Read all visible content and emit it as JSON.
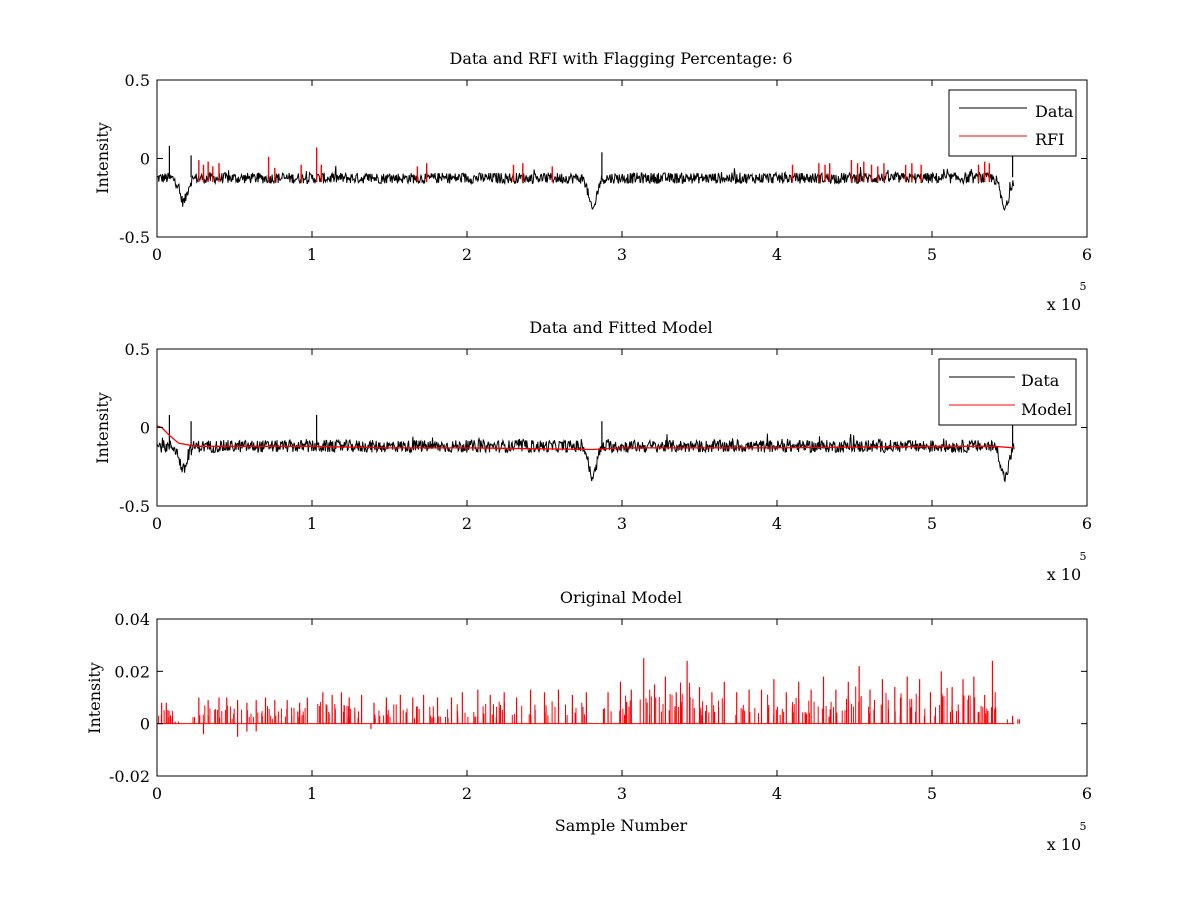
{
  "figure": {
    "subplots": [
      {
        "id": "rfi",
        "title": "Data and RFI with Flagging Percentage: 6",
        "xlabel": "",
        "ylabel": "Intensity",
        "x_multiplier_label": "x 10",
        "x_multiplier_exp": "5"
      },
      {
        "id": "model",
        "title": "Data and Fitted Model",
        "xlabel": "",
        "ylabel": "Intensity",
        "x_multiplier_label": "x 10",
        "x_multiplier_exp": "5"
      },
      {
        "id": "original",
        "title": "Original Model",
        "xlabel": "Sample Number",
        "ylabel": "Intensity",
        "x_multiplier_label": "x 10",
        "x_multiplier_exp": "5"
      }
    ]
  },
  "chart_data": [
    {
      "type": "line",
      "title": "Data and RFI with Flagging Percentage: 6",
      "xlabel": "",
      "ylabel": "Intensity",
      "xlim": [
        0,
        600000
      ],
      "ylim": [
        -0.5,
        0.5
      ],
      "x_ticks": [
        0,
        100000,
        200000,
        300000,
        400000,
        500000,
        600000
      ],
      "x_tick_labels": [
        "0",
        "1",
        "2",
        "3",
        "4",
        "5",
        "6"
      ],
      "y_ticks": [
        -0.5,
        0,
        0.5
      ],
      "y_tick_labels": [
        "-0.5",
        "0",
        "0.5"
      ],
      "grid": false,
      "legend_position": "top-right",
      "series": [
        {
          "name": "Data",
          "color": "#000000",
          "baseline": -0.12,
          "noise_band": [
            -0.16,
            -0.09
          ],
          "x_end": 553000,
          "dips": [
            {
              "x": 17000,
              "min": -0.27
            },
            {
              "x": 281000,
              "min": -0.32
            },
            {
              "x": 547000,
              "min": -0.32
            }
          ],
          "peaks": [
            {
              "x": 8000,
              "max": 0.08
            },
            {
              "x": 22000,
              "max": 0.02
            },
            {
              "x": 287000,
              "max": 0.04
            },
            {
              "x": 552000,
              "max": 0.02
            }
          ]
        },
        {
          "name": "RFI",
          "color": "#ff0000",
          "spikes": [
            {
              "x": 27000,
              "y": -0.01
            },
            {
              "x": 30000,
              "y": -0.04
            },
            {
              "x": 33000,
              "y": -0.02
            },
            {
              "x": 36000,
              "y": -0.05
            },
            {
              "x": 40000,
              "y": -0.03
            },
            {
              "x": 72000,
              "y": 0.01
            },
            {
              "x": 76000,
              "y": -0.06
            },
            {
              "x": 93000,
              "y": -0.04
            },
            {
              "x": 103000,
              "y": 0.07
            },
            {
              "x": 106000,
              "y": -0.04
            },
            {
              "x": 168000,
              "y": -0.05
            },
            {
              "x": 174000,
              "y": -0.03
            },
            {
              "x": 230000,
              "y": -0.04
            },
            {
              "x": 236000,
              "y": -0.03
            },
            {
              "x": 255000,
              "y": -0.05
            },
            {
              "x": 410000,
              "y": -0.04
            },
            {
              "x": 427000,
              "y": -0.03
            },
            {
              "x": 431000,
              "y": -0.04
            },
            {
              "x": 434000,
              "y": -0.03
            },
            {
              "x": 448000,
              "y": -0.01
            },
            {
              "x": 452000,
              "y": -0.03
            },
            {
              "x": 456000,
              "y": -0.02
            },
            {
              "x": 461000,
              "y": -0.04
            },
            {
              "x": 465000,
              "y": -0.05
            },
            {
              "x": 469000,
              "y": -0.03
            },
            {
              "x": 483000,
              "y": -0.04
            },
            {
              "x": 487000,
              "y": -0.03
            },
            {
              "x": 493000,
              "y": -0.04
            },
            {
              "x": 530000,
              "y": -0.04
            },
            {
              "x": 534000,
              "y": -0.02
            },
            {
              "x": 537000,
              "y": -0.03
            }
          ]
        }
      ]
    },
    {
      "type": "line",
      "title": "Data and Fitted Model",
      "xlabel": "",
      "ylabel": "Intensity",
      "xlim": [
        0,
        600000
      ],
      "ylim": [
        -0.5,
        0.5
      ],
      "x_ticks": [
        0,
        100000,
        200000,
        300000,
        400000,
        500000,
        600000
      ],
      "x_tick_labels": [
        "0",
        "1",
        "2",
        "3",
        "4",
        "5",
        "6"
      ],
      "y_ticks": [
        -0.5,
        0,
        0.5
      ],
      "y_tick_labels": [
        "-0.5",
        "0",
        "0.5"
      ],
      "grid": false,
      "legend_position": "top-right",
      "series": [
        {
          "name": "Data",
          "color": "#000000",
          "baseline": -0.12,
          "noise_band": [
            -0.16,
            -0.08
          ],
          "x_end": 553000,
          "dips": [
            {
              "x": 17000,
              "min": -0.27
            },
            {
              "x": 281000,
              "min": -0.32
            },
            {
              "x": 547000,
              "min": -0.32
            }
          ],
          "peaks": [
            {
              "x": 8000,
              "max": 0.08
            },
            {
              "x": 22000,
              "max": 0.04
            },
            {
              "x": 103000,
              "max": 0.08
            },
            {
              "x": 287000,
              "max": 0.04
            },
            {
              "x": 552000,
              "max": 0.02
            }
          ]
        },
        {
          "name": "Model",
          "color": "#ff0000",
          "points": [
            [
              0,
              0.01
            ],
            [
              3000,
              0.0
            ],
            [
              8000,
              -0.05
            ],
            [
              14000,
              -0.1
            ],
            [
              25000,
              -0.12
            ],
            [
              100000,
              -0.12
            ],
            [
              150000,
              -0.13
            ],
            [
              200000,
              -0.13
            ],
            [
              281000,
              -0.14
            ],
            [
              300000,
              -0.13
            ],
            [
              400000,
              -0.13
            ],
            [
              500000,
              -0.12
            ],
            [
              540000,
              -0.12
            ],
            [
              553000,
              -0.13
            ]
          ]
        }
      ]
    },
    {
      "type": "line",
      "title": "Original Model",
      "xlabel": "Sample Number",
      "ylabel": "Intensity",
      "xlim": [
        0,
        600000
      ],
      "ylim": [
        -0.02,
        0.04
      ],
      "x_ticks": [
        0,
        100000,
        200000,
        300000,
        400000,
        500000,
        600000
      ],
      "x_tick_labels": [
        "0",
        "1",
        "2",
        "3",
        "4",
        "5",
        "6"
      ],
      "y_ticks": [
        -0.02,
        0,
        0.02,
        0.04
      ],
      "y_tick_labels": [
        "-0.02",
        "0",
        "0.02",
        "0.04"
      ],
      "grid": false,
      "series": [
        {
          "color": "#ff0000",
          "baseline": 0.0,
          "x_start": 0,
          "x_end": 553000,
          "spikes": [
            {
              "x": 3000,
              "y": 0.008
            },
            {
              "x": 6000,
              "y": 0.008
            },
            {
              "x": 10000,
              "y": 0.003
            },
            {
              "x": 27000,
              "y": 0.01
            },
            {
              "x": 33000,
              "y": 0.009
            },
            {
              "x": 40000,
              "y": 0.01
            },
            {
              "x": 45000,
              "y": 0.01
            },
            {
              "x": 52000,
              "y": 0.009
            },
            {
              "x": 58000,
              "y": 0.008
            },
            {
              "x": 64000,
              "y": 0.009
            },
            {
              "x": 70000,
              "y": 0.01
            },
            {
              "x": 76000,
              "y": 0.009
            },
            {
              "x": 84000,
              "y": 0.009
            },
            {
              "x": 92000,
              "y": 0.008
            },
            {
              "x": 97000,
              "y": 0.01
            },
            {
              "x": 107000,
              "y": 0.012
            },
            {
              "x": 113000,
              "y": 0.011
            },
            {
              "x": 119000,
              "y": 0.012
            },
            {
              "x": 124000,
              "y": 0.01
            },
            {
              "x": 132000,
              "y": 0.011
            },
            {
              "x": 140000,
              "y": 0.008
            },
            {
              "x": 148000,
              "y": 0.01
            },
            {
              "x": 157000,
              "y": 0.011
            },
            {
              "x": 165000,
              "y": 0.01
            },
            {
              "x": 172000,
              "y": 0.011
            },
            {
              "x": 181000,
              "y": 0.01
            },
            {
              "x": 190000,
              "y": 0.01
            },
            {
              "x": 197000,
              "y": 0.012
            },
            {
              "x": 207000,
              "y": 0.013
            },
            {
              "x": 215000,
              "y": 0.011
            },
            {
              "x": 224000,
              "y": 0.012
            },
            {
              "x": 232000,
              "y": 0.01
            },
            {
              "x": 241000,
              "y": 0.013
            },
            {
              "x": 250000,
              "y": 0.012
            },
            {
              "x": 259000,
              "y": 0.013
            },
            {
              "x": 268000,
              "y": 0.011
            },
            {
              "x": 277000,
              "y": 0.012
            },
            {
              "x": 291000,
              "y": 0.012
            },
            {
              "x": 299000,
              "y": 0.016
            },
            {
              "x": 306000,
              "y": 0.013
            },
            {
              "x": 314000,
              "y": 0.025
            },
            {
              "x": 321000,
              "y": 0.015
            },
            {
              "x": 328000,
              "y": 0.018
            },
            {
              "x": 335000,
              "y": 0.012
            },
            {
              "x": 342000,
              "y": 0.024
            },
            {
              "x": 350000,
              "y": 0.014
            },
            {
              "x": 358000,
              "y": 0.012
            },
            {
              "x": 366000,
              "y": 0.016
            },
            {
              "x": 374000,
              "y": 0.012
            },
            {
              "x": 382000,
              "y": 0.013
            },
            {
              "x": 390000,
              "y": 0.013
            },
            {
              "x": 398000,
              "y": 0.017
            },
            {
              "x": 406000,
              "y": 0.012
            },
            {
              "x": 414000,
              "y": 0.016
            },
            {
              "x": 422000,
              "y": 0.013
            },
            {
              "x": 430000,
              "y": 0.018
            },
            {
              "x": 438000,
              "y": 0.013
            },
            {
              "x": 446000,
              "y": 0.016
            },
            {
              "x": 453000,
              "y": 0.022
            },
            {
              "x": 460000,
              "y": 0.013
            },
            {
              "x": 468000,
              "y": 0.017
            },
            {
              "x": 476000,
              "y": 0.014
            },
            {
              "x": 484000,
              "y": 0.018
            },
            {
              "x": 492000,
              "y": 0.017
            },
            {
              "x": 499000,
              "y": 0.012
            },
            {
              "x": 506000,
              "y": 0.02
            },
            {
              "x": 513000,
              "y": 0.014
            },
            {
              "x": 520000,
              "y": 0.017
            },
            {
              "x": 527000,
              "y": 0.018
            },
            {
              "x": 534000,
              "y": 0.011
            },
            {
              "x": 539000,
              "y": 0.024
            },
            {
              "x": 552000,
              "y": 0.003
            }
          ],
          "negative_dips": [
            {
              "x": 30000,
              "y": -0.004
            },
            {
              "x": 52000,
              "y": -0.005
            },
            {
              "x": 58000,
              "y": -0.003
            },
            {
              "x": 64000,
              "y": -0.003
            },
            {
              "x": 138000,
              "y": -0.002
            }
          ]
        }
      ]
    }
  ]
}
